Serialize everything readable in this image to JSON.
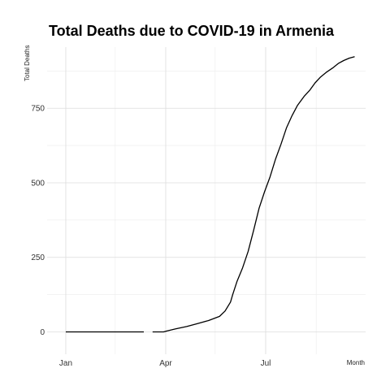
{
  "chart_data": {
    "type": "line",
    "title": "Total Deaths due to COVID-19 in Armenia",
    "xlabel": "Month",
    "ylabel": "Total Deaths",
    "x_tick_labels": [
      "Jan",
      "Apr",
      "Jul"
    ],
    "x_ticks": [
      "2020-01-01",
      "2020-04-01",
      "2020-07-01"
    ],
    "x_minor_ticks": [
      "2020-02-15",
      "2020-05-16",
      "2020-08-16"
    ],
    "xlim": [
      "2019-12-15",
      "2020-09-30"
    ],
    "y_ticks": [
      0,
      250,
      500,
      750
    ],
    "y_tick_labels": [
      "0",
      "250",
      "500",
      "750"
    ],
    "ylim": [
      -75,
      955
    ],
    "grid": true,
    "segments": [
      {
        "x": [
          "2020-01-01",
          "2020-03-12"
        ],
        "y": [
          0,
          0
        ]
      },
      {
        "x": [
          "2020-03-20",
          "2020-03-25",
          "2020-03-30",
          "2020-04-02",
          "2020-04-10",
          "2020-04-20",
          "2020-04-30",
          "2020-05-10",
          "2020-05-20",
          "2020-05-25",
          "2020-05-30",
          "2020-06-01",
          "2020-06-05",
          "2020-06-10",
          "2020-06-15",
          "2020-06-20",
          "2020-06-25",
          "2020-06-30",
          "2020-07-05",
          "2020-07-10",
          "2020-07-15",
          "2020-07-20",
          "2020-07-25",
          "2020-07-30",
          "2020-08-05",
          "2020-08-10",
          "2020-08-15",
          "2020-08-20",
          "2020-08-25",
          "2020-08-31",
          "2020-09-05",
          "2020-09-10",
          "2020-09-15",
          "2020-09-20"
        ],
        "y": [
          0,
          0,
          0,
          3,
          10,
          18,
          28,
          38,
          52,
          70,
          100,
          125,
          170,
          215,
          270,
          340,
          415,
          470,
          520,
          580,
          630,
          685,
          725,
          760,
          790,
          810,
          835,
          855,
          870,
          885,
          900,
          910,
          918,
          923
        ]
      }
    ]
  }
}
